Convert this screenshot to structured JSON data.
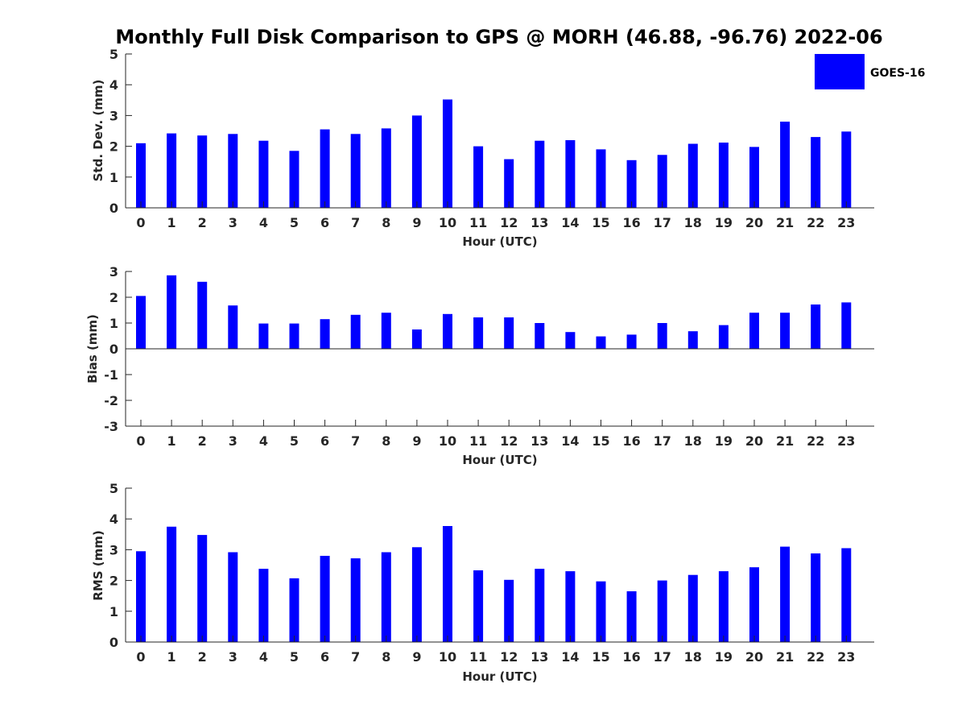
{
  "colors": {
    "bar": "#0000ff",
    "axis": "#262626",
    "background": "#ffffff"
  },
  "chart_data": {
    "title": "Monthly Full Disk Comparison to GPS @ MORH (46.88, -96.76) 2022-06",
    "legend": {
      "label": "GOES-16",
      "placement": "top-right"
    },
    "panels": [
      {
        "type": "bar",
        "xlabel": "Hour (UTC)",
        "ylabel": "Std. Dev. (mm)",
        "ylim": [
          0,
          5
        ],
        "yticks": [
          "0",
          "1",
          "2",
          "3",
          "4",
          "5"
        ],
        "categories": [
          "0",
          "1",
          "2",
          "3",
          "4",
          "5",
          "6",
          "7",
          "8",
          "9",
          "10",
          "11",
          "12",
          "13",
          "14",
          "15",
          "16",
          "17",
          "18",
          "19",
          "20",
          "21",
          "22",
          "23"
        ],
        "series": [
          {
            "name": "GOES-16",
            "values": [
              2.1,
              2.42,
              2.35,
              2.4,
              2.18,
              1.85,
              2.55,
              2.4,
              2.58,
              3.0,
              3.52,
              2.0,
              1.58,
              2.18,
              2.2,
              1.9,
              1.55,
              1.72,
              2.08,
              2.12,
              1.98,
              2.8,
              2.3,
              2.48
            ]
          }
        ]
      },
      {
        "type": "bar",
        "xlabel": "Hour (UTC)",
        "ylabel": "Bias (mm)",
        "ylim": [
          -3,
          3
        ],
        "yticks": [
          "-3",
          "-2",
          "-1",
          "0",
          "1",
          "2",
          "3"
        ],
        "categories": [
          "0",
          "1",
          "2",
          "3",
          "4",
          "5",
          "6",
          "7",
          "8",
          "9",
          "10",
          "11",
          "12",
          "13",
          "14",
          "15",
          "16",
          "17",
          "18",
          "19",
          "20",
          "21",
          "22",
          "23"
        ],
        "series": [
          {
            "name": "GOES-16",
            "values": [
              2.05,
              2.85,
              2.6,
              1.68,
              0.98,
              0.98,
              1.15,
              1.32,
              1.4,
              0.75,
              1.35,
              1.22,
              1.22,
              1.0,
              0.65,
              0.48,
              0.55,
              1.0,
              0.68,
              0.92,
              1.4,
              1.4,
              1.72,
              1.8
            ]
          }
        ]
      },
      {
        "type": "bar",
        "xlabel": "Hour (UTC)",
        "ylabel": "RMS (mm)",
        "ylim": [
          0,
          5
        ],
        "yticks": [
          "0",
          "1",
          "2",
          "3",
          "4",
          "5"
        ],
        "categories": [
          "0",
          "1",
          "2",
          "3",
          "4",
          "5",
          "6",
          "7",
          "8",
          "9",
          "10",
          "11",
          "12",
          "13",
          "14",
          "15",
          "16",
          "17",
          "18",
          "19",
          "20",
          "21",
          "22",
          "23"
        ],
        "series": [
          {
            "name": "GOES-16",
            "values": [
              2.95,
              3.75,
              3.48,
              2.92,
              2.38,
              2.07,
              2.8,
              2.72,
              2.92,
              3.08,
              3.77,
              2.33,
              2.02,
              2.38,
              2.3,
              1.97,
              1.65,
              2.0,
              2.18,
              2.3,
              2.43,
              3.1,
              2.88,
              3.05
            ]
          }
        ]
      }
    ]
  }
}
